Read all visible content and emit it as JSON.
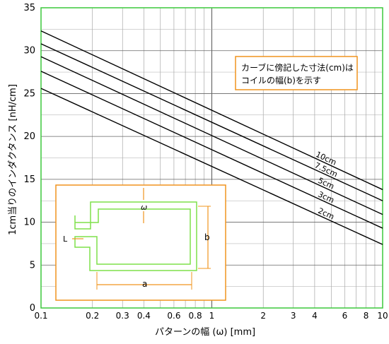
{
  "chart_data": {
    "type": "line",
    "x_scale": "log",
    "xlim": [
      0.1,
      10
    ],
    "ylim": [
      0,
      35
    ],
    "xlabel": "パターンの幅 (ω) [mm]",
    "ylabel": "1cm当りのインダクタンス [nH/cm]",
    "x_tick_labels": [
      "0.1",
      "0.2",
      "0.3",
      "0.4",
      "0.6",
      "0.8",
      "1",
      "2",
      "3",
      "4",
      "6",
      "8",
      "10"
    ],
    "x_tick_values": [
      0.1,
      0.2,
      0.3,
      0.4,
      0.6,
      0.8,
      1,
      2,
      3,
      4,
      6,
      8,
      10
    ],
    "y_tick_labels": [
      "0",
      "5",
      "10",
      "15",
      "20",
      "25",
      "30",
      "35"
    ],
    "y_tick_values": [
      0,
      5,
      10,
      15,
      20,
      25,
      30,
      35
    ],
    "grid": true,
    "x": [
      0.1,
      10
    ],
    "series": [
      {
        "name": "10cm",
        "values": [
          32.3,
          13.8
        ]
      },
      {
        "name": "7.5cm",
        "values": [
          30.8,
          12.5
        ]
      },
      {
        "name": "5cm",
        "values": [
          29.3,
          10.9
        ]
      },
      {
        "name": "3cm",
        "values": [
          27.6,
          9.3
        ]
      },
      {
        "name": "2cm",
        "values": [
          25.6,
          7.4
        ]
      }
    ],
    "annotation": [
      "カーブに傍記した寸法(cm)は",
      "コイルの幅(b)を示す"
    ],
    "inset_labels": {
      "w": "ω",
      "l": "L",
      "b": "b",
      "a": "a"
    }
  }
}
